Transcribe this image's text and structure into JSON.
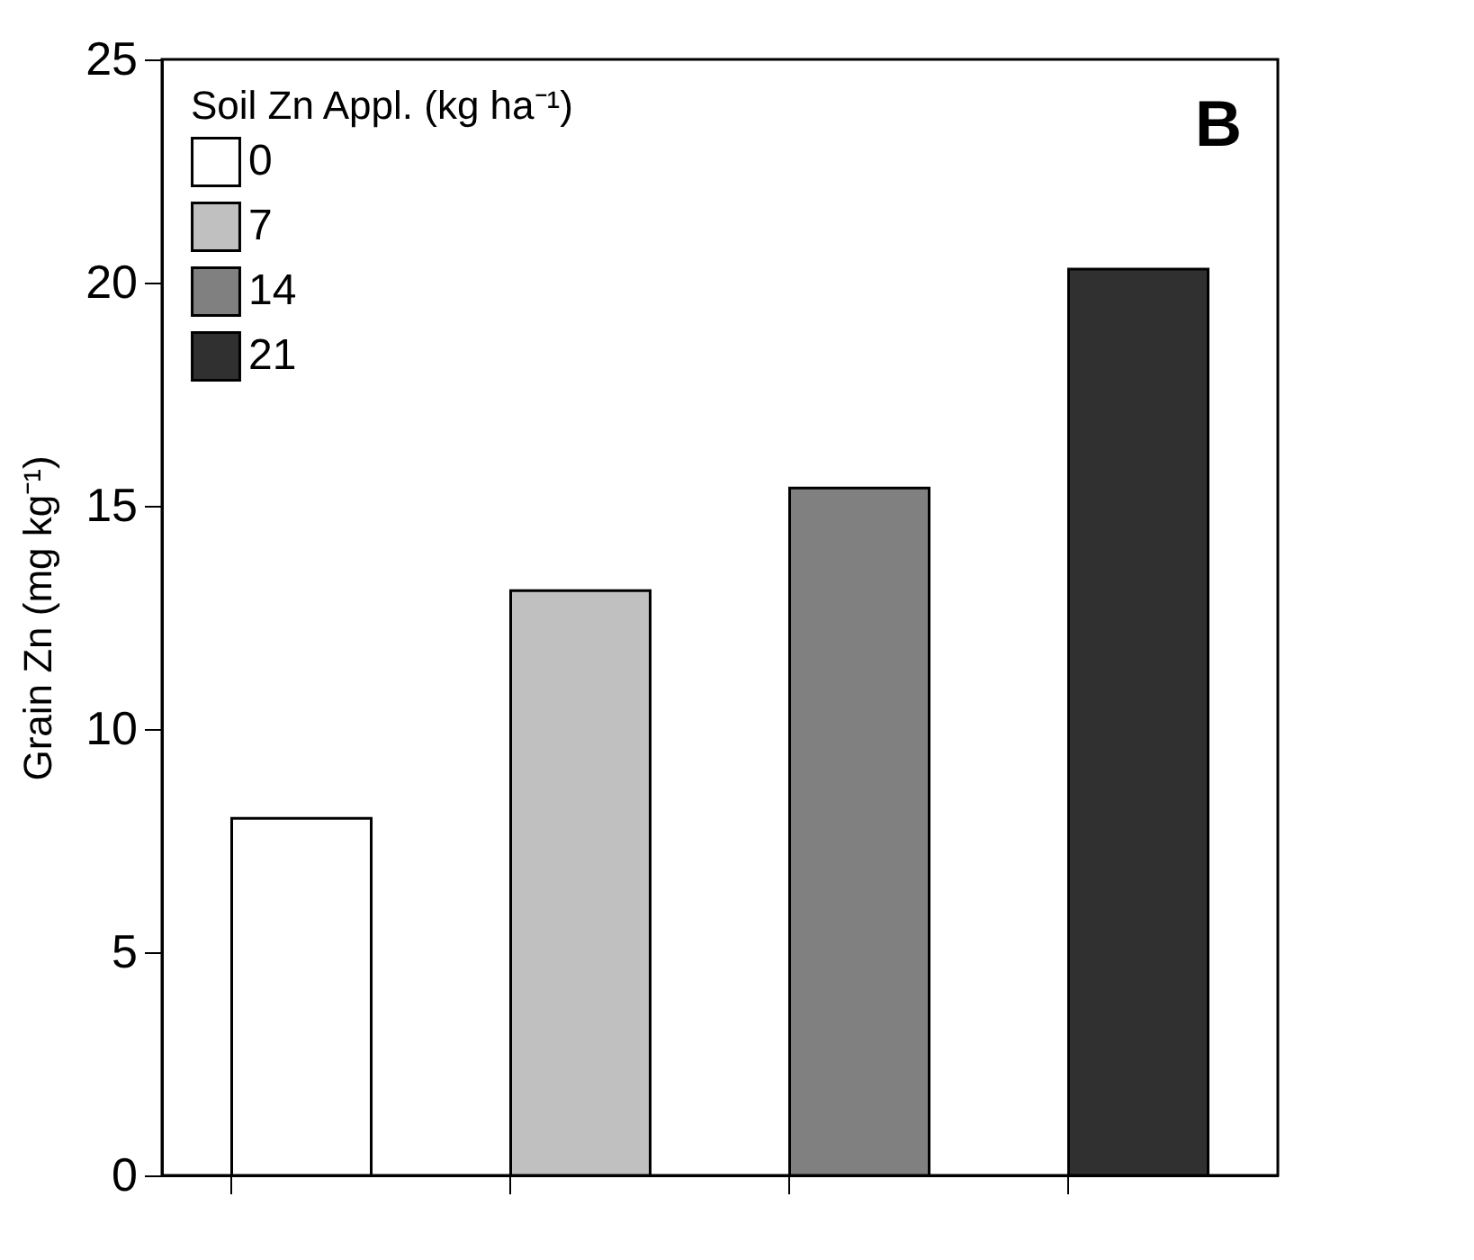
{
  "chart_data": {
    "type": "bar",
    "ylabel": "Grain Zn (mg kg⁻¹)",
    "legend_title": "Soil Zn Appl. (kg ha⁻¹)",
    "annotations": [
      "B"
    ],
    "categories": [
      null,
      null,
      null,
      null
    ],
    "series": [
      {
        "name": "0",
        "color": "#ffffff",
        "values": [
          8.0,
          null,
          null,
          null
        ]
      },
      {
        "name": "7",
        "color": "#c0c0c0",
        "values": [
          null,
          13.1,
          null,
          null
        ]
      },
      {
        "name": "14",
        "color": "#808080",
        "values": [
          null,
          null,
          15.4,
          null
        ]
      },
      {
        "name": "21",
        "color": "#303030",
        "values": [
          null,
          null,
          null,
          20.3
        ]
      }
    ],
    "ylim": [
      0,
      25
    ],
    "yticks": [
      0,
      5,
      10,
      15,
      20,
      25
    ],
    "grid": false,
    "legend": "top left",
    "tick_labels": "y"
  }
}
